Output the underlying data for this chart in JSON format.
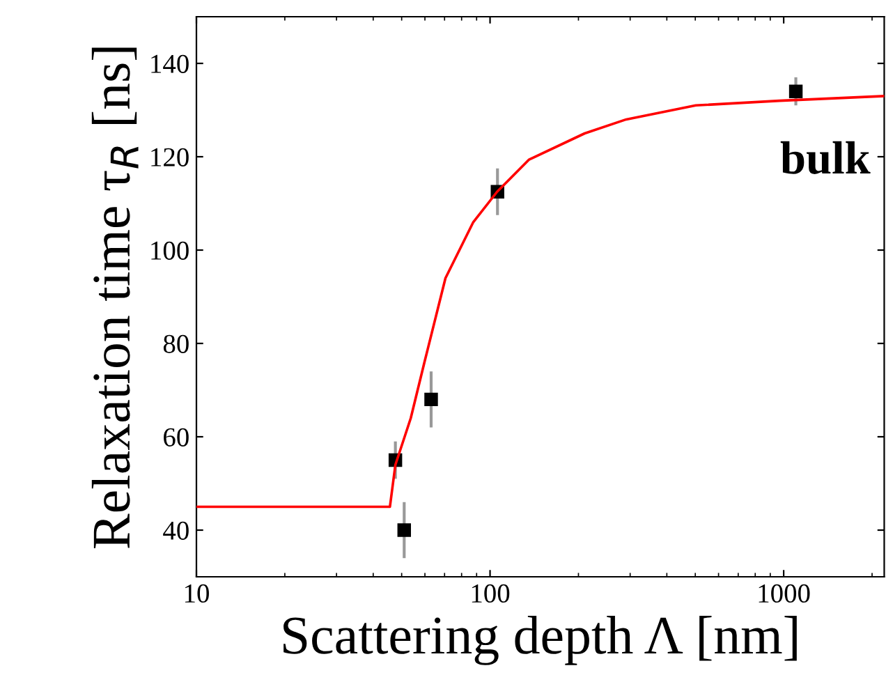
{
  "chart_data": {
    "type": "scatter",
    "xlabel": "Scattering depth Λ [nm]",
    "ylabel": "Relaxation time τ$_{R}$ [ns]",
    "log": "x",
    "xlim": [
      10,
      2200
    ],
    "ylim": [
      30,
      150
    ],
    "xticks": [
      10,
      100,
      1000
    ],
    "yticks": [
      40,
      60,
      80,
      100,
      120,
      140
    ],
    "grid": false,
    "legend": false,
    "marker": "square",
    "annotations": [
      "bulk"
    ],
    "series": [
      {
        "color": "#000000",
        "x": [
          47.6,
          51,
          63,
          106,
          1100
        ],
        "values": [
          55,
          40,
          68,
          112.5,
          134
        ],
        "errors": [
          4,
          6,
          6,
          5,
          3
        ]
      },
      {
        "type": "line",
        "color": "#ff0000",
        "marker": "none",
        "line_style": "solid",
        "x": [
          10,
          45.6,
          47.6,
          53.7,
          59.8,
          70.5,
          87.7,
          105.7,
          135.8,
          210,
          291,
          502,
          968,
          2200
        ],
        "values": [
          45,
          45,
          54,
          64,
          76,
          94,
          106,
          112.5,
          119.4,
          125,
          128,
          131,
          132,
          133
        ]
      }
    ]
  }
}
